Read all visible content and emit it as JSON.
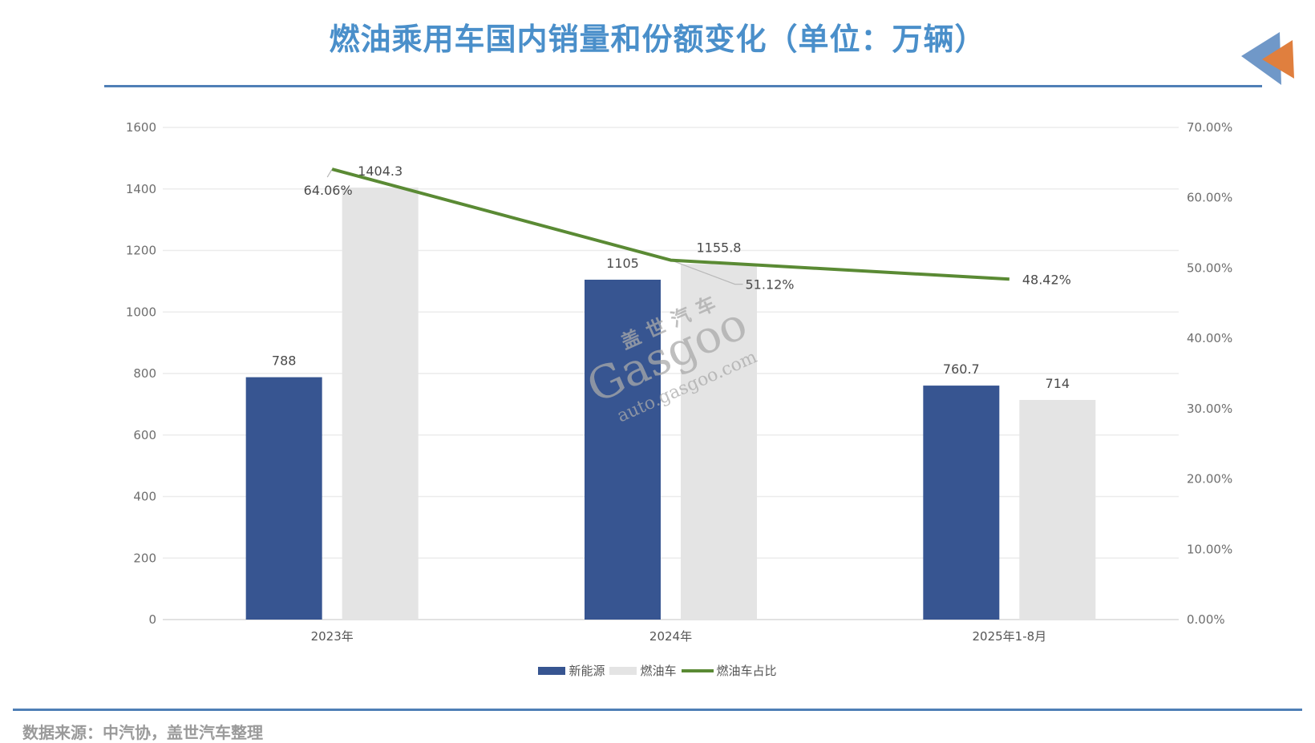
{
  "title": "燃油乘用车国内销量和份额变化（单位：万辆）",
  "source": "数据来源：中汽协，盖世汽车整理",
  "watermark": {
    "cn": "盖世汽车",
    "en": "Gasgoo",
    "url": "auto.gasgoo.com"
  },
  "colors": {
    "nev": "#375591",
    "ice": "#e4e4e4",
    "share": "#5a8a34",
    "title": "#4a8fca",
    "rule": "#4f7fb6"
  },
  "legend": [
    {
      "label": "新能源",
      "type": "bar"
    },
    {
      "label": "燃油车",
      "type": "bar"
    },
    {
      "label": "燃油车占比",
      "type": "line"
    }
  ],
  "left_axis_ticks": [
    "0",
    "200",
    "400",
    "600",
    "800",
    "1000",
    "1200",
    "1400",
    "1600"
  ],
  "right_axis_ticks": [
    "0.00%",
    "10.00%",
    "20.00%",
    "30.00%",
    "40.00%",
    "50.00%",
    "60.00%",
    "70.00%"
  ],
  "chart_data": {
    "type": "bar",
    "title": "燃油乘用车国内销量和份额变化（单位：万辆）",
    "categories": [
      "2023年",
      "2024年",
      "2025年1-8月"
    ],
    "series": [
      {
        "name": "新能源",
        "type": "bar",
        "axis": "left",
        "values": [
          788,
          1105,
          760.7
        ],
        "labels": [
          "788",
          "1105",
          "760.7"
        ]
      },
      {
        "name": "燃油车",
        "type": "bar",
        "axis": "left",
        "values": [
          1404.3,
          1155.8,
          714
        ],
        "labels": [
          "1404.3",
          "1155.8",
          "714"
        ]
      },
      {
        "name": "燃油车占比",
        "type": "line",
        "axis": "right",
        "values": [
          64.06,
          51.12,
          48.42
        ],
        "labels": [
          "64.06%",
          "51.12%",
          "48.42%"
        ]
      }
    ],
    "xlabel": "",
    "ylabel": "万辆",
    "ylim": [
      0,
      1600
    ],
    "y2lim": [
      0,
      70
    ],
    "grid": true,
    "legend_position": "bottom"
  }
}
